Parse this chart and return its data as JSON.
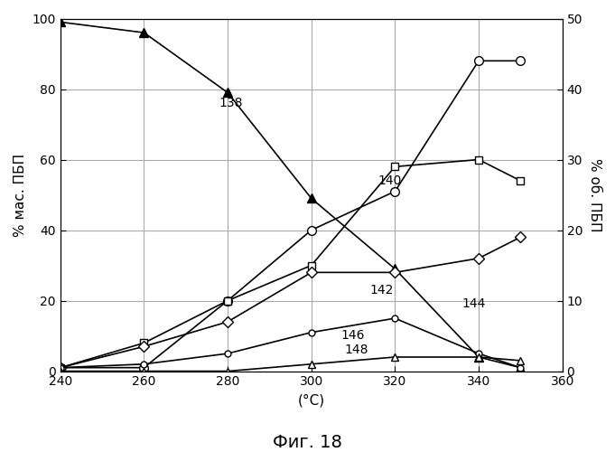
{
  "title": "Фиг. 18",
  "xlabel": "(°С)",
  "ylabel_left": "% мас. ПБП",
  "ylabel_right": "% об. ПБП",
  "xlim": [
    240,
    360
  ],
  "ylim_left": [
    0,
    100
  ],
  "ylim_right": [
    0,
    50
  ],
  "xticks": [
    240,
    260,
    280,
    300,
    320,
    340,
    360
  ],
  "yticks_left": [
    0,
    20,
    40,
    60,
    80,
    100
  ],
  "yticks_right": [
    0,
    10,
    20,
    30,
    40,
    50
  ],
  "s138": {
    "x": [
      240,
      260,
      280,
      300,
      320,
      340,
      350
    ],
    "y": [
      99,
      96,
      79,
      49,
      29,
      4,
      1
    ],
    "ann_x": 278,
    "ann_y": 75
  },
  "s140": {
    "x": [
      240,
      260,
      280,
      300,
      320,
      340,
      350
    ],
    "y": [
      1,
      1,
      20,
      40,
      51,
      88,
      88
    ],
    "ann_x": 316,
    "ann_y": 53
  },
  "s142": {
    "x": [
      240,
      260,
      280,
      300,
      320,
      340,
      350
    ],
    "y": [
      0.5,
      4,
      10,
      15,
      29,
      30,
      27
    ],
    "ann_x": 314,
    "ann_y": 22
  },
  "s144": {
    "x": [
      240,
      260,
      280,
      300,
      320,
      340,
      350
    ],
    "y": [
      0.5,
      3.5,
      7,
      14,
      14,
      16,
      19
    ],
    "ann_x": 336,
    "ann_y": 18
  },
  "s146": {
    "x": [
      240,
      260,
      280,
      300,
      320,
      340,
      350
    ],
    "y": [
      0.5,
      1,
      2.5,
      5.5,
      7.5,
      2.5,
      0.5
    ],
    "ann_x": 307,
    "ann_y": 9
  },
  "s148": {
    "x": [
      240,
      260,
      280,
      300,
      320,
      340,
      350
    ],
    "y": [
      0,
      0,
      0,
      1,
      2,
      2,
      1.5
    ],
    "ann_x": 308,
    "ann_y": 5
  },
  "grid_color": "#aaaaaa",
  "line_color": "#000000",
  "bg_color": "#ffffff"
}
